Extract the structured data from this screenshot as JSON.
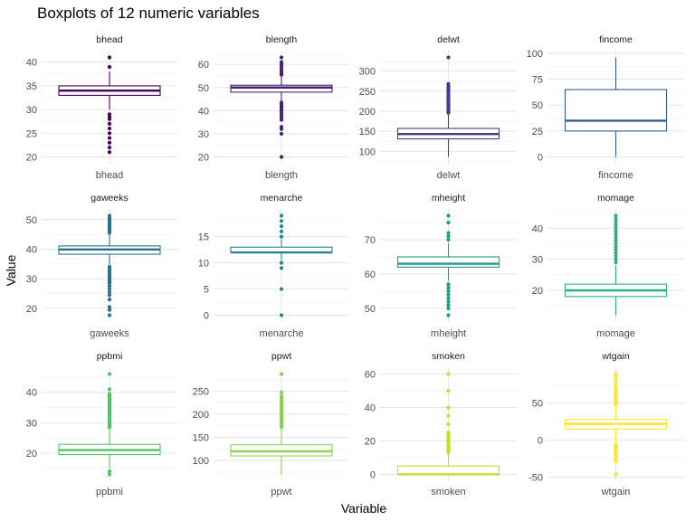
{
  "chart_data": {
    "type": "boxplot",
    "title": "Boxplots of 12 numeric variables",
    "xlabel": "Variable",
    "ylabel": "Value",
    "grid": true,
    "legend": "none",
    "panels": [
      {
        "name": "bhead",
        "color": "#440154",
        "ylim": [
          20,
          41
        ],
        "ticks": [
          20,
          25,
          30,
          35,
          40
        ],
        "q1": 33,
        "median": 34,
        "q3": 35,
        "whisker_low": 30,
        "whisker_high": 38,
        "outliers": [
          21,
          22,
          23,
          24,
          25,
          26,
          27,
          28,
          28.5,
          29,
          39,
          41
        ]
      },
      {
        "name": "blength",
        "color": "#482173",
        "ylim": [
          20,
          63
        ],
        "ticks": [
          20,
          30,
          40,
          50,
          60
        ],
        "q1": 48,
        "median": 50,
        "q3": 51,
        "whisker_low": 44,
        "whisker_high": 55,
        "outliers": [
          20,
          30,
          32,
          33,
          36,
          37,
          38,
          39,
          40,
          40.5,
          41,
          41.5,
          42,
          42.5,
          43,
          43.5,
          55.5,
          56,
          56.5,
          57,
          58,
          59,
          60,
          61,
          63
        ]
      },
      {
        "name": "delwt",
        "color": "#433E85",
        "ylim": [
          86,
          334
        ],
        "ticks": [
          100,
          150,
          200,
          250,
          300
        ],
        "q1": 131,
        "median": 143,
        "q3": 157,
        "whisker_low": 86,
        "whisker_high": 195,
        "outliers": [
          196,
          198,
          200,
          202,
          205,
          208,
          210,
          212,
          215,
          218,
          220,
          223,
          226,
          230,
          233,
          237,
          240,
          243,
          246,
          250,
          253,
          256,
          260,
          264,
          268,
          334
        ]
      },
      {
        "name": "fincome",
        "color": "#38598C",
        "ylim": [
          0,
          96
        ],
        "ticks": [
          0,
          25,
          50,
          75,
          100
        ],
        "q1": 25,
        "median": 35,
        "q3": 65,
        "whisker_low": 0,
        "whisker_high": 96,
        "outliers": []
      },
      {
        "name": "gaweeks",
        "color": "#2D708E",
        "ylim": [
          17.7,
          51.3
        ],
        "ticks": [
          20,
          30,
          40,
          50
        ],
        "q1": 38.3,
        "median": 39.9,
        "q3": 41.1,
        "whisker_low": 34.1,
        "whisker_high": 45.3,
        "outliers": [
          17.7,
          19.5,
          20.5,
          23,
          24.5,
          25.5,
          26.5,
          27.5,
          28.5,
          29,
          29.5,
          30,
          30.5,
          31,
          31.5,
          32,
          32.5,
          33,
          33.5,
          34,
          45.5,
          46,
          46.5,
          47,
          47.5,
          48,
          48.5,
          49,
          49.5,
          50,
          50.5,
          51.3
        ]
      },
      {
        "name": "menarche",
        "color": "#25858E",
        "ylim": [
          0,
          19
        ],
        "ticks": [
          0,
          5,
          10,
          15
        ],
        "q1": 12,
        "median": 12,
        "q3": 13,
        "whisker_low": 10.5,
        "whisker_high": 14.5,
        "outliers": [
          0,
          5,
          9,
          10,
          15,
          16,
          17,
          18,
          19
        ]
      },
      {
        "name": "mheight",
        "color": "#1E9B8A",
        "ylim": [
          48,
          77
        ],
        "ticks": [
          50,
          60,
          70
        ],
        "q1": 62,
        "median": 63,
        "q3": 65,
        "whisker_low": 58,
        "whisker_high": 69,
        "outliers": [
          48,
          50,
          51,
          52,
          53,
          54,
          55,
          56,
          57,
          70,
          71,
          72,
          75,
          77
        ]
      },
      {
        "name": "momage",
        "color": "#2BB07F",
        "ylim": [
          12,
          44
        ],
        "ticks": [
          20,
          30,
          40
        ],
        "q1": 18,
        "median": 20,
        "q3": 22,
        "whisker_low": 12,
        "whisker_high": 28,
        "outliers": [
          29,
          30,
          31,
          32,
          33,
          34,
          35,
          36,
          37,
          38,
          39,
          40,
          41,
          42,
          43,
          44
        ]
      },
      {
        "name": "ppbmi",
        "color": "#51C56A",
        "ylim": [
          13,
          46
        ],
        "ticks": [
          20,
          30,
          40
        ],
        "q1": 19.5,
        "median": 21,
        "q3": 22.9,
        "whisker_low": 15,
        "whisker_high": 28,
        "outliers": [
          13,
          14,
          28.5,
          29,
          29.5,
          30,
          30.5,
          31,
          31.5,
          32,
          32.5,
          33,
          33.5,
          34,
          34.5,
          35,
          35.5,
          36,
          36.5,
          37,
          37.5,
          38,
          38.5,
          39,
          39.5,
          41,
          46
        ]
      },
      {
        "name": "ppwt",
        "color": "#85D54A",
        "ylim": [
          70,
          287
        ],
        "ticks": [
          100,
          150,
          200,
          250
        ],
        "q1": 110,
        "median": 120,
        "q3": 134,
        "whisker_low": 70,
        "whisker_high": 170,
        "outliers": [
          172,
          175,
          178,
          180,
          183,
          186,
          190,
          193,
          196,
          200,
          203,
          206,
          210,
          214,
          218,
          222,
          226,
          230,
          235,
          240,
          248,
          287
        ]
      },
      {
        "name": "smoken",
        "color": "#C2DF23",
        "ylim": [
          0,
          60
        ],
        "ticks": [
          0,
          20,
          40,
          60
        ],
        "q1": 0,
        "median": 0,
        "q3": 5,
        "whisker_low": 0,
        "whisker_high": 12.5,
        "outliers": [
          13,
          14,
          15,
          16,
          17,
          18,
          19,
          20,
          21,
          22,
          23,
          24,
          25,
          30,
          35,
          40,
          50,
          60
        ]
      },
      {
        "name": "wtgain",
        "color": "#FDE725",
        "ylim": [
          -46,
          89
        ],
        "ticks": [
          -50,
          0,
          50
        ],
        "q1": 15,
        "median": 22,
        "q3": 28,
        "whisker_low": -4,
        "whisker_high": 47,
        "outliers": [
          -46,
          -29,
          -27,
          -25,
          -22,
          -20,
          -18,
          -16,
          -14,
          -12,
          -10,
          -8,
          -6,
          48,
          50,
          52,
          54,
          56,
          58,
          60,
          62,
          64,
          66,
          68,
          70,
          75,
          80,
          85,
          89
        ]
      }
    ]
  }
}
